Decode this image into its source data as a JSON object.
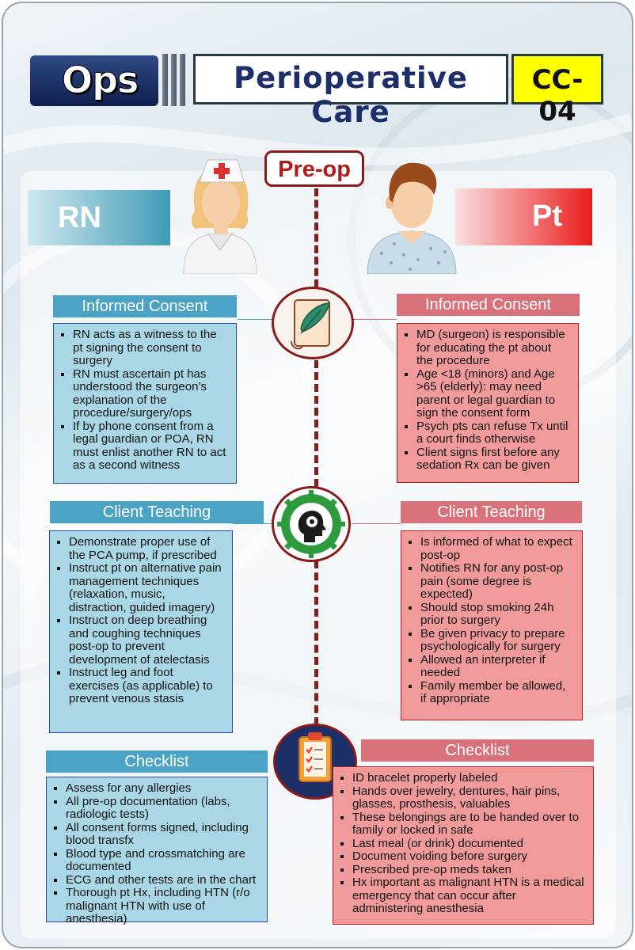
{
  "header": {
    "left_label": "Ops",
    "title": "Perioperative Care",
    "code": "CC-04"
  },
  "phase_label": "Pre-op",
  "roles": {
    "left": "RN",
    "right": "Pt"
  },
  "colors": {
    "rn_accent": "#4aa3c4",
    "pt_accent": "#d9717b",
    "divider": "#8b1a1a",
    "code_bg": "#ffff00"
  },
  "icons": {
    "nurse": "nurse-icon",
    "patient": "patient-icon",
    "consent": "quill-scroll-icon",
    "teaching": "brain-gear-icon",
    "checklist": "clipboard-icon"
  },
  "sections": {
    "consent": {
      "rn": {
        "title": "Informed Consent",
        "items": [
          "RN acts as a witness to the pt signing the consent to surgery",
          "RN must ascertain pt has understood the surgeon’s explanation of the procedure/surgery/ops",
          "If by phone consent from a legal guardian or POA, RN must enlist another RN to act as a second witness"
        ]
      },
      "pt": {
        "title": "Informed Consent",
        "items": [
          "MD (surgeon) is responsible for educating the pt about the procedure",
          "Age <18 (minors) and Age >65 (elderly): may need parent or legal guardian to sign the consent form",
          "Psych pts can refuse Tx until a court finds otherwise",
          "Client signs first before any sedation Rx can be given"
        ]
      }
    },
    "teaching": {
      "rn": {
        "title": "Client Teaching",
        "items": [
          "Demonstrate proper use of the PCA pump, if prescribed",
          "Instruct pt on alternative pain management techniques (relaxation, music, distraction, guided imagery)",
          "Instruct on deep breathing and coughing techniques post-op to prevent development of atelectasis",
          "Instruct leg and foot exercises (as applicable) to prevent venous stasis"
        ]
      },
      "pt": {
        "title": "Client Teaching",
        "items": [
          "Is informed of what to expect post-op",
          "Notifies RN for any post-op pain (some degree is expected)",
          "Should stop smoking 24h prior to surgery",
          "Be given privacy to prepare psychologically for surgery",
          "Allowed an interpreter if needed",
          "Family member be allowed, if appropriate"
        ]
      }
    },
    "checklist": {
      "rn": {
        "title": "Checklist",
        "items": [
          "Assess for any allergies",
          "All pre-op documentation (labs, radiologic tests)",
          "All consent forms signed, including blood transfx",
          "Blood type and crossmatching are documented",
          "ECG and other tests are in the chart",
          "Thorough pt Hx, including HTN (r/o malignant HTN with use of anesthesia)"
        ]
      },
      "pt": {
        "title": "Checklist",
        "items": [
          "ID bracelet properly labeled",
          "Hands over jewelry, dentures, hair pins, glasses, prosthesis, valuables",
          "These belongings are to be handed over to family or locked in safe",
          "Last meal (or drink) documented",
          "Document voiding before surgery",
          "Prescribed pre-op meds taken",
          "Hx important as malignant HTN is a medical emergency that can occur after administering anesthesia"
        ]
      }
    }
  }
}
